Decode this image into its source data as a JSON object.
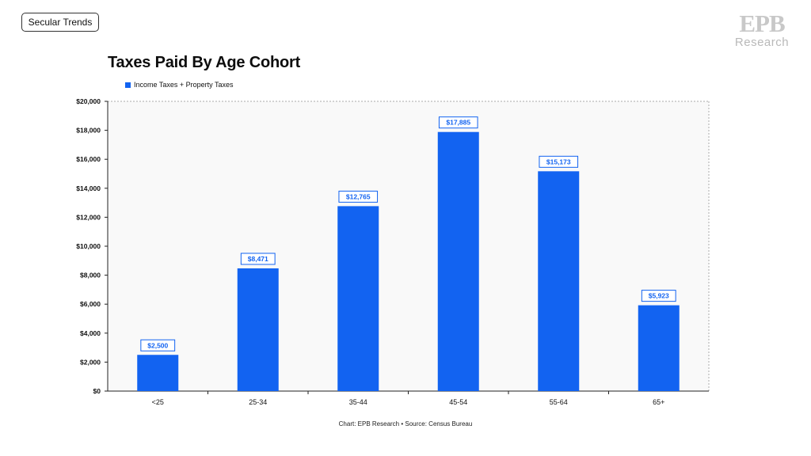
{
  "tag": {
    "label": "Secular Trends"
  },
  "logo": {
    "mark": "EPB",
    "sub": "Research"
  },
  "chart_data": {
    "type": "bar",
    "title": "Taxes Paid By Age Cohort",
    "categories": [
      "<25",
      "25-34",
      "35-44",
      "45-54",
      "55-64",
      "65+"
    ],
    "series": [
      {
        "name": "Income Taxes + Property Taxes",
        "values": [
          2500,
          8471,
          12765,
          17885,
          15173,
          5923
        ],
        "labels": [
          "$2,500",
          "$8,471",
          "$12,765",
          "$17,885",
          "$15,173",
          "$5,923"
        ]
      }
    ],
    "y_ticks": [
      "$0",
      "$2,000",
      "$4,000",
      "$6,000",
      "$8,000",
      "$10,000",
      "$12,000",
      "$14,000",
      "$16,000",
      "$18,000",
      "$20,000"
    ],
    "ylim": [
      0,
      20000
    ],
    "xlabel": "",
    "ylabel": "",
    "grid": false,
    "legend_position": "top-left",
    "colors": {
      "bar": "#1263f1",
      "plot_background": "#f9f9f9",
      "label_text": "#1263f1"
    }
  },
  "footer": {
    "text": "Chart: EPB Research  •  Source: Census Bureau"
  }
}
